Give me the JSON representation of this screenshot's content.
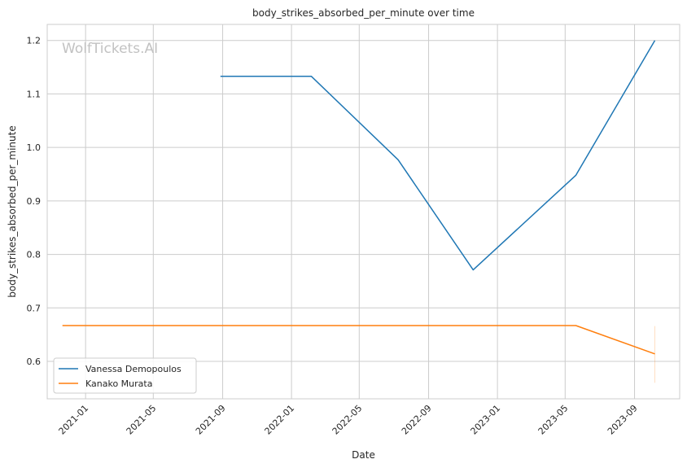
{
  "chart_data": {
    "type": "line",
    "title": "body_strikes_absorbed_per_minute over time",
    "xlabel": "Date",
    "ylabel": "body_strikes_absorbed_per_minute",
    "watermark": "WolfTickets.AI",
    "xlim": [
      "2020-10-25",
      "2023-11-20"
    ],
    "ylim": [
      0.53,
      1.23
    ],
    "x_ticks": [
      "2021-01-01",
      "2021-05-01",
      "2021-09-01",
      "2022-01-01",
      "2022-05-01",
      "2022-09-01",
      "2023-01-01",
      "2023-05-01",
      "2023-09-01"
    ],
    "x_tick_labels": [
      "2021-01",
      "2021-05",
      "2021-09",
      "2022-01",
      "2022-05",
      "2022-09",
      "2023-01",
      "2023-05",
      "2023-09"
    ],
    "y_ticks": [
      0.6,
      0.7,
      0.8,
      0.9,
      1.0,
      1.1,
      1.2
    ],
    "y_tick_labels": [
      "0.6",
      "0.7",
      "0.8",
      "0.9",
      "1.0",
      "1.1",
      "1.2"
    ],
    "grid": true,
    "legend_position": "lower-left",
    "series": [
      {
        "name": "Vanessa Demopoulos",
        "color": "#1f77b4",
        "points": [
          {
            "x": "2021-08-28",
            "y": 1.133
          },
          {
            "x": "2022-02-05",
            "y": 1.133
          },
          {
            "x": "2022-07-09",
            "y": 0.977
          },
          {
            "x": "2022-11-19",
            "y": 0.771
          },
          {
            "x": "2023-05-20",
            "y": 0.948
          },
          {
            "x": "2023-10-07",
            "y": 1.2
          }
        ]
      },
      {
        "name": "Kanako Murata",
        "color": "#ff7f0e",
        "points": [
          {
            "x": "2020-11-21",
            "y": 0.667
          },
          {
            "x": "2023-05-20",
            "y": 0.667
          },
          {
            "x": "2023-10-07",
            "y": 0.614
          }
        ],
        "error_bar": {
          "x": "2023-10-07",
          "low": 0.56,
          "high": 0.666
        }
      }
    ]
  }
}
